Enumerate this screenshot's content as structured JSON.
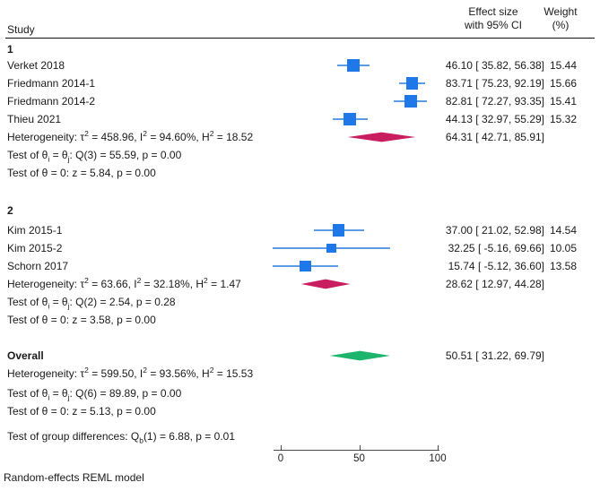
{
  "header": {
    "study": "Study",
    "effect_line1": "Effect size",
    "effect_line2": "with 95% CI",
    "weight_line1": "Weight",
    "weight_line2": "(%)"
  },
  "colors": {
    "marker_square": "#1e78e8",
    "ci_line": "#5b9ce2",
    "subgroup_diamond": "#c81d5e",
    "overall_diamond": "#1db46e"
  },
  "chart_data": {
    "type": "forest",
    "x_axis": {
      "ticks": [
        {
          "v": 0,
          "label": "0"
        },
        {
          "v": 50,
          "label": "50"
        },
        {
          "v": 100,
          "label": "100"
        }
      ]
    },
    "groups": [
      {
        "label": "1",
        "studies": [
          {
            "name": "Verket 2018",
            "est": 46.1,
            "lo": 35.82,
            "hi": 56.38,
            "weight": 15.44,
            "ci_text": "46.10 [ 35.82, 56.38]",
            "weight_text": "15.44"
          },
          {
            "name": "Friedmann 2014-1",
            "est": 83.71,
            "lo": 75.23,
            "hi": 92.19,
            "weight": 15.66,
            "ci_text": "83.71 [ 75.23, 92.19]",
            "weight_text": "15.66"
          },
          {
            "name": "Friedmann 2014-2",
            "est": 82.81,
            "lo": 72.27,
            "hi": 93.35,
            "weight": 15.41,
            "ci_text": "82.81 [ 72.27, 93.35]",
            "weight_text": "15.41"
          },
          {
            "name": "Thieu 2021",
            "est": 44.13,
            "lo": 32.97,
            "hi": 55.29,
            "weight": 15.32,
            "ci_text": "44.13 [ 32.97, 55.29]",
            "weight_text": "15.32"
          }
        ],
        "heterogeneity": [
          {
            "t": "Heterogeneity: τ"
          },
          {
            "sup": "2"
          },
          {
            "t": " = 458.96, I"
          },
          {
            "sup": "2"
          },
          {
            "t": " = 94.60%, H"
          },
          {
            "sup": "2"
          },
          {
            "t": " = 18.52"
          }
        ],
        "test_eq": [
          {
            "t": "Test of θ"
          },
          {
            "sub": "i"
          },
          {
            "t": " = θ"
          },
          {
            "sub": "j"
          },
          {
            "t": ": Q(3) = 55.59, p = 0.00"
          }
        ],
        "test_zero": "Test of θ = 0: z = 5.84, p = 0.00",
        "summary": {
          "est": 64.31,
          "lo": 42.71,
          "hi": 85.91,
          "ci_text": "64.31 [ 42.71, 85.91]"
        }
      },
      {
        "label": "2",
        "studies": [
          {
            "name": "Kim 2015-1",
            "est": 37.0,
            "lo": 21.02,
            "hi": 52.98,
            "weight": 14.54,
            "ci_text": "37.00 [ 21.02, 52.98]",
            "weight_text": "14.54"
          },
          {
            "name": "Kim 2015-2",
            "est": 32.25,
            "lo": -5.16,
            "hi": 69.66,
            "weight": 10.05,
            "ci_text": "32.25 [ -5.16, 69.66]",
            "weight_text": "10.05"
          },
          {
            "name": "Schorn 2017",
            "est": 15.74,
            "lo": -5.12,
            "hi": 36.6,
            "weight": 13.58,
            "ci_text": "15.74 [ -5.12, 36.60]",
            "weight_text": "13.58"
          }
        ],
        "heterogeneity": [
          {
            "t": "Heterogeneity: τ"
          },
          {
            "sup": "2"
          },
          {
            "t": " = 63.66, I"
          },
          {
            "sup": "2"
          },
          {
            "t": " = 32.18%, H"
          },
          {
            "sup": "2"
          },
          {
            "t": " = 1.47"
          }
        ],
        "test_eq": [
          {
            "t": "Test of θ"
          },
          {
            "sub": "i"
          },
          {
            "t": " = θ"
          },
          {
            "sub": "j"
          },
          {
            "t": ": Q(2) = 2.54, p = 0.28"
          }
        ],
        "test_zero": "Test of θ = 0: z = 3.58, p = 0.00",
        "summary": {
          "est": 28.62,
          "lo": 12.97,
          "hi": 44.28,
          "ci_text": "28.62 [ 12.97, 44.28]"
        }
      }
    ],
    "overall": {
      "label": "Overall",
      "heterogeneity": [
        {
          "t": "Heterogeneity: τ"
        },
        {
          "sup": "2"
        },
        {
          "t": " = 599.50, I"
        },
        {
          "sup": "2"
        },
        {
          "t": " = 93.56%, H"
        },
        {
          "sup": "2"
        },
        {
          "t": " = 15.53"
        }
      ],
      "test_eq": [
        {
          "t": "Test of θ"
        },
        {
          "sub": "i"
        },
        {
          "t": " = θ"
        },
        {
          "sub": "j"
        },
        {
          "t": ": Q(6) = 89.89, p = 0.00"
        }
      ],
      "test_zero": "Test of θ = 0: z = 5.13, p = 0.00",
      "summary": {
        "est": 50.51,
        "lo": 31.22,
        "hi": 69.79,
        "ci_text": "50.51 [ 31.22, 69.79]"
      }
    },
    "group_diff": [
      {
        "t": "Test of group differences: Q"
      },
      {
        "sub": "b"
      },
      {
        "t": "(1) = 6.88, p = 0.01"
      }
    ],
    "footer": "Random-effects REML model"
  }
}
